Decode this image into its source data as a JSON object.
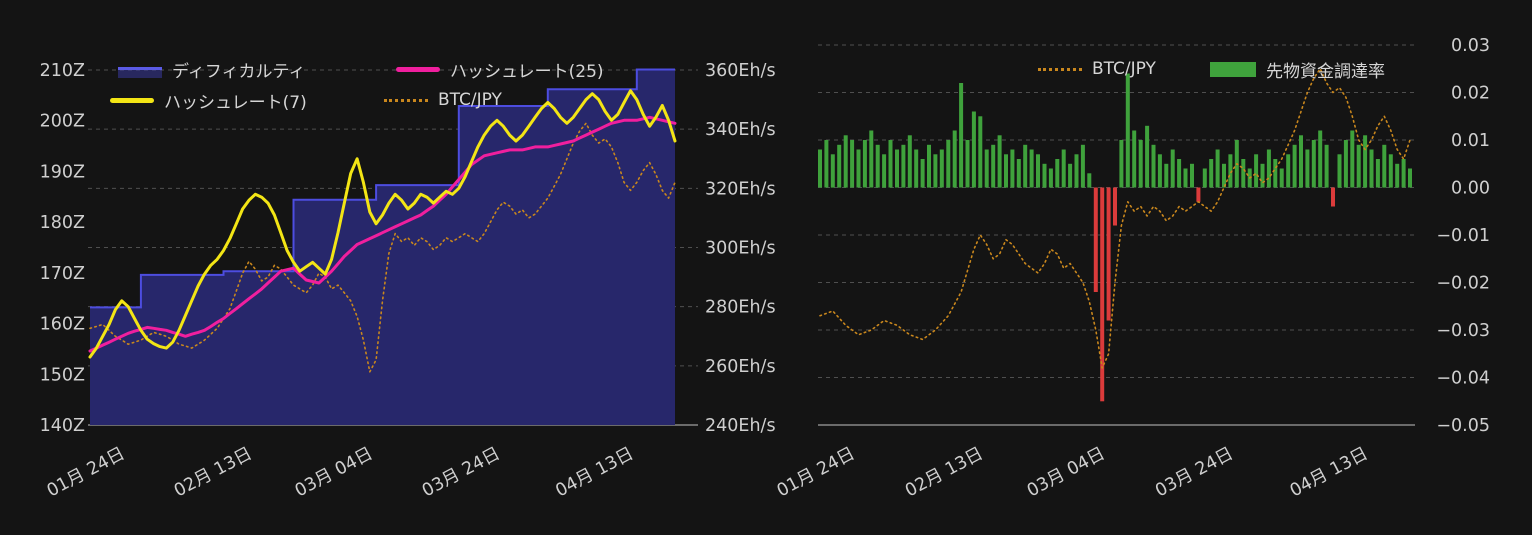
{
  "theme": {
    "background": "#141414",
    "text_color": "#cfcfcf",
    "grid_color": "#4f4f4f",
    "axis_line_color": "#9f9f9f",
    "accent_blue": "#4d4de0",
    "accent_pink": "#f01f9e",
    "accent_yellow": "#f3e515",
    "accent_orange": "#c9871d",
    "accent_green": "#3fa23c",
    "accent_red": "#db3b3b"
  },
  "chart_data": [
    {
      "title": "difficulty-hashrate-chart",
      "type": "line",
      "days": 93,
      "grid": true,
      "legend_position": "top",
      "x_ticks": {
        "days": [
          0,
          20,
          39,
          59,
          80
        ],
        "labels": [
          "01月 24日",
          "02月 13日",
          "03月 04日",
          "03月 24日",
          "04月 13日"
        ]
      },
      "left_axis": {
        "min": 140,
        "max": 210,
        "labels": [
          "140Z",
          "150Z",
          "160Z",
          "170Z",
          "180Z",
          "190Z",
          "200Z",
          "210Z"
        ]
      },
      "right_axis": {
        "min": 240,
        "max": 360,
        "labels": [
          "240Eh/s",
          "260Eh/s",
          "280Eh/s",
          "300Eh/s",
          "320Eh/s",
          "340Eh/s",
          "360Eh/s"
        ]
      },
      "series": [
        {
          "name": "ディフィカルティ",
          "type": "step-area",
          "axis": "left",
          "color": "#4d4de0",
          "fill": "#27276b",
          "values": [
            163.2,
            163.2,
            163.2,
            163.2,
            163.2,
            163.2,
            163.2,
            163.2,
            169.6,
            169.6,
            169.6,
            169.6,
            169.6,
            169.6,
            169.6,
            169.6,
            169.6,
            169.6,
            169.6,
            169.6,
            169.6,
            170.3,
            170.3,
            170.3,
            170.3,
            170.3,
            170.3,
            170.3,
            170.3,
            170.3,
            170.3,
            170.3,
            184.4,
            184.4,
            184.4,
            184.4,
            184.4,
            184.4,
            184.4,
            184.4,
            184.4,
            184.4,
            184.4,
            184.4,
            184.4,
            187.3,
            187.3,
            187.3,
            187.3,
            187.3,
            187.3,
            187.3,
            187.3,
            187.3,
            187.3,
            187.3,
            187.3,
            187.3,
            202.9,
            202.9,
            202.9,
            202.9,
            202.9,
            202.9,
            202.9,
            202.9,
            202.9,
            202.9,
            202.9,
            202.9,
            202.9,
            202.9,
            206.2,
            206.2,
            206.2,
            206.2,
            206.2,
            206.2,
            206.2,
            206.2,
            206.2,
            206.2,
            206.2,
            206.2,
            206.2,
            206.2,
            210.1,
            210.1,
            210.1,
            210.1,
            210.1,
            210.1,
            210.1
          ]
        },
        {
          "name": "ハッシュレート(25)",
          "type": "line",
          "axis": "right",
          "color": "#f01f9e",
          "values": [
            265,
            266,
            267,
            268,
            269,
            270,
            271,
            271.7,
            272.3,
            273,
            272.7,
            272.3,
            272,
            271.3,
            270.7,
            270,
            270.7,
            271.3,
            272,
            273.3,
            274.7,
            276,
            277.7,
            279.3,
            281,
            282.7,
            284.3,
            286,
            288,
            290,
            292,
            292.5,
            293,
            291,
            289,
            288.5,
            288,
            290,
            292,
            294.5,
            297,
            299,
            301,
            302,
            303,
            304,
            305,
            306,
            307,
            308,
            309,
            310,
            311,
            312.5,
            314,
            316,
            318,
            320.5,
            323,
            325.5,
            328,
            329.5,
            331,
            331.5,
            332,
            332.5,
            333,
            333,
            333,
            333.5,
            334,
            334,
            334,
            334.5,
            335,
            335.5,
            336,
            337,
            338,
            339,
            340,
            341,
            342,
            342.5,
            343,
            343,
            343,
            343.5,
            344,
            343.5,
            343,
            342.5,
            342
          ]
        },
        {
          "name": "ハッシュレート(7)",
          "type": "line",
          "axis": "right",
          "color": "#f3e515",
          "values": [
            263,
            266,
            270,
            274,
            279,
            282,
            280,
            276,
            272,
            269,
            267.5,
            266.5,
            266,
            268,
            272,
            277,
            282,
            287,
            291,
            294,
            296,
            299,
            303,
            308,
            313,
            316,
            318,
            317,
            315,
            311,
            305,
            299,
            295,
            292,
            293.5,
            295,
            293,
            291,
            296,
            305,
            315,
            325,
            330,
            322,
            312,
            308,
            311,
            315,
            318,
            316,
            313,
            315,
            318,
            317,
            315,
            317,
            319,
            318,
            320,
            324,
            329,
            334,
            338,
            341,
            343,
            341,
            338,
            336,
            338,
            341,
            344,
            347,
            349,
            347,
            344,
            342,
            344,
            347,
            350,
            352,
            350,
            346,
            343,
            345,
            349,
            353,
            350,
            345,
            341,
            344,
            348,
            343,
            336
          ]
        },
        {
          "name": "BTC/JPY",
          "type": "dotted-line",
          "axis": "right",
          "color": "#c9871d",
          "values": [
            272.7,
            273.3,
            274,
            272,
            270,
            268.7,
            267.3,
            268,
            268.7,
            270,
            271.3,
            270.7,
            270,
            268.7,
            267.3,
            266.7,
            266,
            267.3,
            268.7,
            270.7,
            272.7,
            276,
            279.3,
            285.3,
            291.3,
            295.3,
            292.7,
            288.7,
            290,
            294,
            292.7,
            290,
            287.3,
            286,
            284.7,
            287.3,
            291.3,
            290,
            286,
            287.3,
            284.7,
            282,
            276.7,
            268.7,
            258,
            262,
            282,
            298,
            304.7,
            302,
            303.3,
            300.7,
            303.3,
            302,
            299.3,
            300.7,
            303.3,
            302,
            303.3,
            304.7,
            303.3,
            302,
            304.7,
            308.7,
            312.7,
            315.3,
            314,
            311.3,
            312.7,
            310,
            311.3,
            314,
            316.7,
            320.7,
            324.7,
            330,
            335.3,
            339.3,
            342,
            338,
            335.3,
            336.7,
            334,
            328.7,
            322,
            319.3,
            322,
            326,
            328.7,
            324.7,
            319.3,
            316.7,
            322
          ]
        }
      ]
    },
    {
      "title": "btcjpy-funding-chart",
      "type": "bar",
      "days": 93,
      "grid": true,
      "legend_position": "top",
      "x_ticks": {
        "days": [
          0,
          20,
          39,
          59,
          80
        ],
        "labels": [
          "01月 24日",
          "02月 13日",
          "03月 04日",
          "03月 24日",
          "04月 13日"
        ]
      },
      "right_axis": {
        "min": -0.05,
        "max": 0.03,
        "labels": [
          "−0.05",
          "−0.04",
          "−0.03",
          "−0.02",
          "−0.01",
          "0.00",
          "0.01",
          "0.02",
          "0.03"
        ]
      },
      "series": [
        {
          "name": "BTC/JPY",
          "type": "dotted-line",
          "color": "#c9871d",
          "values": [
            -0.027,
            -0.0265,
            -0.026,
            -0.0275,
            -0.029,
            -0.03,
            -0.031,
            -0.0305,
            -0.03,
            -0.029,
            -0.028,
            -0.0285,
            -0.029,
            -0.03,
            -0.031,
            -0.0315,
            -0.032,
            -0.031,
            -0.03,
            -0.0285,
            -0.027,
            -0.0245,
            -0.022,
            -0.0175,
            -0.013,
            -0.01,
            -0.012,
            -0.015,
            -0.014,
            -0.011,
            -0.012,
            -0.014,
            -0.016,
            -0.017,
            -0.018,
            -0.016,
            -0.013,
            -0.014,
            -0.017,
            -0.016,
            -0.018,
            -0.02,
            -0.024,
            -0.03,
            -0.038,
            -0.035,
            -0.02,
            -0.008,
            -0.003,
            -0.005,
            -0.004,
            -0.006,
            -0.004,
            -0.005,
            -0.007,
            -0.006,
            -0.004,
            -0.005,
            -0.004,
            -0.003,
            -0.004,
            -0.005,
            -0.003,
            0.0,
            0.003,
            0.005,
            0.004,
            0.002,
            0.003,
            0.001,
            0.002,
            0.004,
            0.006,
            0.009,
            0.012,
            0.016,
            0.02,
            0.023,
            0.025,
            0.022,
            0.02,
            0.021,
            0.019,
            0.015,
            0.01,
            0.008,
            0.01,
            0.013,
            0.015,
            0.012,
            0.008,
            0.006,
            0.01
          ]
        },
        {
          "name": "先物資金調達率",
          "type": "bar",
          "color_positive": "#3fa23c",
          "color_negative": "#db3b3b",
          "values": [
            0.008,
            0.01,
            0.007,
            0.009,
            0.011,
            0.01,
            0.008,
            0.01,
            0.012,
            0.009,
            0.007,
            0.01,
            0.008,
            0.009,
            0.011,
            0.008,
            0.006,
            0.009,
            0.007,
            0.008,
            0.01,
            0.012,
            0.022,
            0.01,
            0.016,
            0.015,
            0.008,
            0.009,
            0.011,
            0.007,
            0.008,
            0.006,
            0.009,
            0.008,
            0.007,
            0.005,
            0.004,
            0.006,
            0.008,
            0.005,
            0.007,
            0.009,
            0.003,
            -0.022,
            -0.045,
            -0.028,
            -0.008,
            0.01,
            0.024,
            0.012,
            0.01,
            0.013,
            0.009,
            0.007,
            0.005,
            0.008,
            0.006,
            0.004,
            0.005,
            -0.003,
            0.004,
            0.006,
            0.008,
            0.005,
            0.007,
            0.01,
            0.006,
            0.004,
            0.007,
            0.005,
            0.008,
            0.006,
            0.004,
            0.007,
            0.009,
            0.011,
            0.008,
            0.01,
            0.012,
            0.009,
            -0.004,
            0.007,
            0.01,
            0.012,
            0.009,
            0.011,
            0.008,
            0.006,
            0.009,
            0.007,
            0.005,
            0.006,
            0.004
          ]
        }
      ]
    }
  ]
}
